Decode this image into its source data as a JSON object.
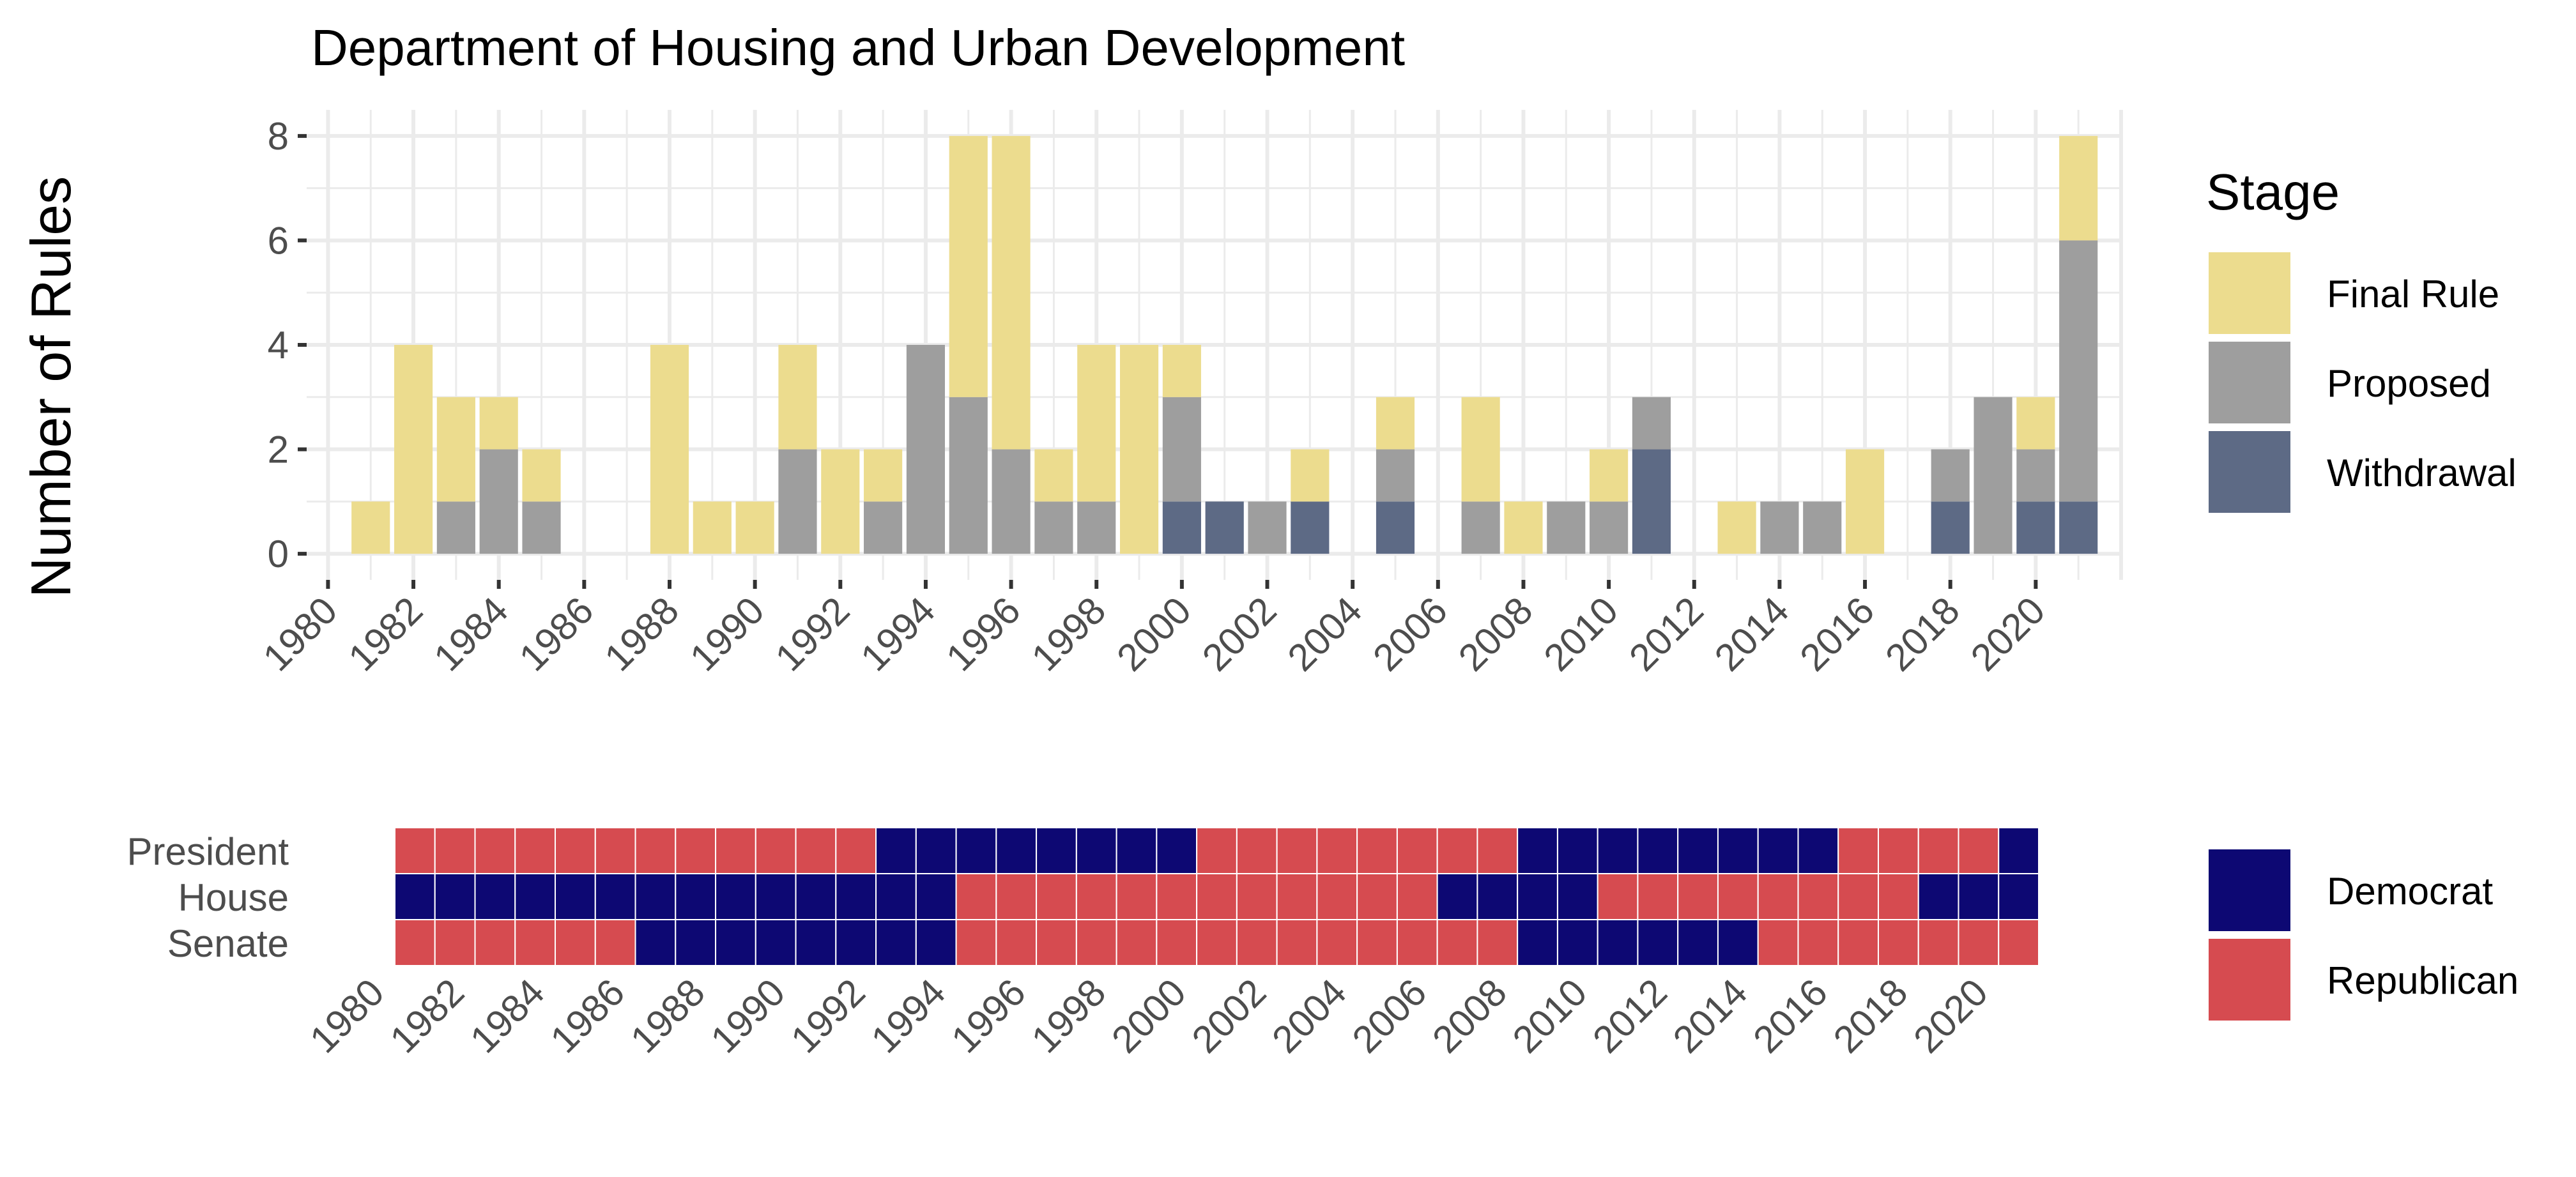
{
  "chart_data": [
    {
      "type": "bar",
      "stacked": true,
      "title": "Department of Housing and Urban Development",
      "ylabel": "Number of Rules",
      "xlabel": "",
      "x": [
        1981,
        1982,
        1983,
        1984,
        1985,
        1988,
        1989,
        1990,
        1991,
        1992,
        1993,
        1994,
        1995,
        1996,
        1997,
        1998,
        1999,
        2000,
        2001,
        2002,
        2003,
        2005,
        2007,
        2008,
        2009,
        2010,
        2011,
        2013,
        2014,
        2015,
        2016,
        2018,
        2019,
        2020,
        2021
      ],
      "series": [
        {
          "name": "Withdrawal",
          "color": "#5d6a85",
          "values": [
            0,
            0,
            0,
            0,
            0,
            0,
            0,
            0,
            0,
            0,
            0,
            0,
            0,
            0,
            0,
            0,
            0,
            1,
            1,
            0,
            1,
            1,
            0,
            0,
            0,
            0,
            2,
            0,
            0,
            0,
            0,
            1,
            0,
            1,
            1
          ]
        },
        {
          "name": "Proposed",
          "color": "#9e9e9e",
          "values": [
            0,
            0,
            1,
            2,
            1,
            0,
            0,
            0,
            2,
            0,
            1,
            4,
            3,
            2,
            1,
            1,
            0,
            2,
            0,
            1,
            0,
            1,
            1,
            0,
            1,
            1,
            1,
            0,
            1,
            1,
            0,
            1,
            3,
            1,
            5
          ]
        },
        {
          "name": "Final Rule",
          "color": "#ecdc8e",
          "values": [
            1,
            4,
            2,
            1,
            1,
            4,
            1,
            1,
            2,
            2,
            1,
            0,
            5,
            6,
            1,
            3,
            4,
            1,
            0,
            0,
            1,
            1,
            2,
            1,
            0,
            1,
            0,
            1,
            0,
            0,
            2,
            0,
            0,
            1,
            2
          ]
        }
      ],
      "xlim": [
        1979.5,
        2022
      ],
      "ylim": [
        -0.5,
        8.5
      ],
      "yticks": [
        0,
        2,
        4,
        6,
        8
      ],
      "xticks": [
        "1980",
        "1982",
        "1984",
        "1986",
        "1988",
        "1990",
        "1992",
        "1994",
        "1996",
        "1998",
        "2000",
        "2002",
        "2004",
        "2006",
        "2008",
        "2010",
        "2012",
        "2014",
        "2016",
        "2018",
        "2020"
      ],
      "grid": true,
      "legend_title": "Stage",
      "legend_position": "right"
    },
    {
      "type": "heatmap",
      "rows": [
        "President",
        "House",
        "Senate"
      ],
      "years": [
        1981,
        1982,
        1983,
        1984,
        1985,
        1986,
        1987,
        1988,
        1989,
        1990,
        1991,
        1992,
        1993,
        1994,
        1995,
        1996,
        1997,
        1998,
        1999,
        2000,
        2001,
        2002,
        2003,
        2004,
        2005,
        2006,
        2007,
        2008,
        2009,
        2010,
        2011,
        2012,
        2013,
        2014,
        2015,
        2016,
        2017,
        2018,
        2019,
        2020,
        2021
      ],
      "values": {
        "President": [
          "R",
          "R",
          "R",
          "R",
          "R",
          "R",
          "R",
          "R",
          "R",
          "R",
          "R",
          "R",
          "D",
          "D",
          "D",
          "D",
          "D",
          "D",
          "D",
          "D",
          "R",
          "R",
          "R",
          "R",
          "R",
          "R",
          "R",
          "R",
          "D",
          "D",
          "D",
          "D",
          "D",
          "D",
          "D",
          "D",
          "R",
          "R",
          "R",
          "R",
          "D"
        ],
        "House": [
          "D",
          "D",
          "D",
          "D",
          "D",
          "D",
          "D",
          "D",
          "D",
          "D",
          "D",
          "D",
          "D",
          "D",
          "R",
          "R",
          "R",
          "R",
          "R",
          "R",
          "R",
          "R",
          "R",
          "R",
          "R",
          "R",
          "D",
          "D",
          "D",
          "D",
          "R",
          "R",
          "R",
          "R",
          "R",
          "R",
          "R",
          "R",
          "D",
          "D",
          "D"
        ],
        "Senate": [
          "R",
          "R",
          "R",
          "R",
          "R",
          "R",
          "D",
          "D",
          "D",
          "D",
          "D",
          "D",
          "D",
          "D",
          "R",
          "R",
          "R",
          "R",
          "R",
          "R",
          "R",
          "R",
          "R",
          "R",
          "R",
          "R",
          "R",
          "R",
          "D",
          "D",
          "D",
          "D",
          "D",
          "D",
          "R",
          "R",
          "R",
          "R",
          "R",
          "R",
          "R"
        ]
      },
      "xticks": [
        "1980",
        "1982",
        "1984",
        "1986",
        "1988",
        "1990",
        "1992",
        "1994",
        "1996",
        "1998",
        "2000",
        "2002",
        "2004",
        "2006",
        "2008",
        "2010",
        "2012",
        "2014",
        "2016",
        "2018",
        "2020"
      ],
      "legend": [
        {
          "key": "D",
          "label": "Democrat",
          "color": "#0d0873"
        },
        {
          "key": "R",
          "label": "Republican",
          "color": "#d64b50"
        }
      ],
      "legend_position": "right"
    }
  ]
}
